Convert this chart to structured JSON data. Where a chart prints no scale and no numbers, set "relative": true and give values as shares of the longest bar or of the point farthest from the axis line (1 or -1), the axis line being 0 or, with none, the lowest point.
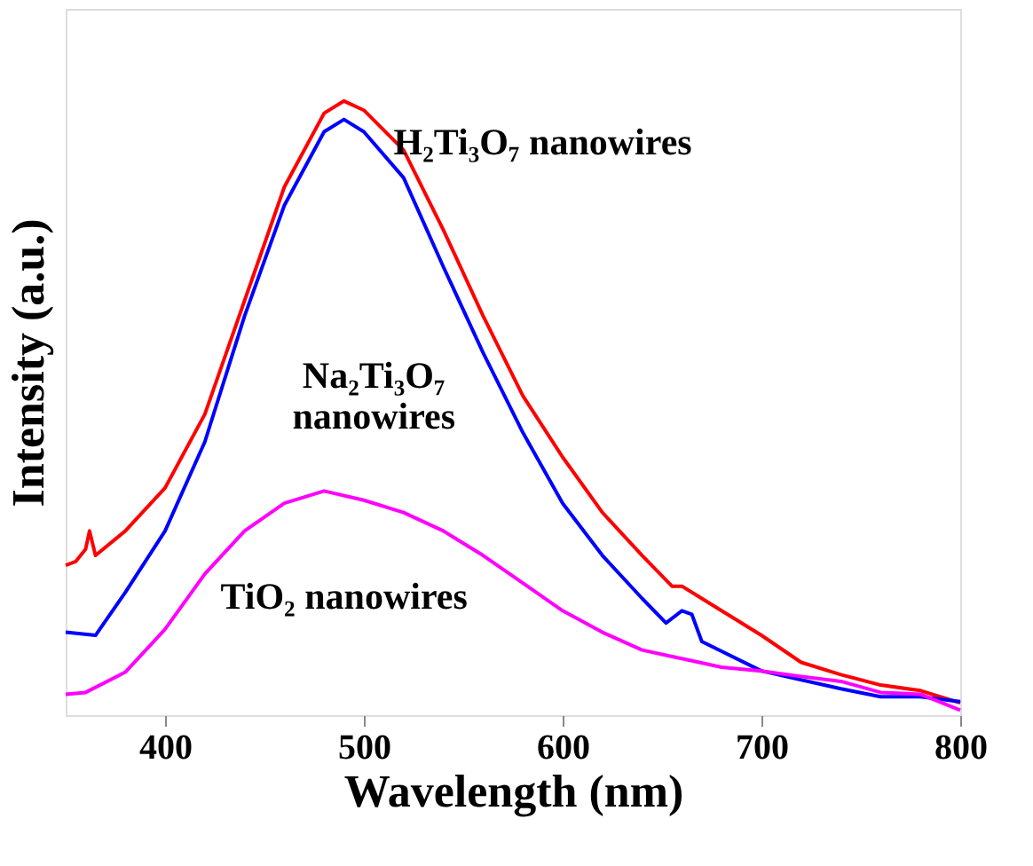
{
  "chart_data": {
    "type": "line",
    "relative": true,
    "xlabel": "Wavelength (nm)",
    "ylabel": "Intensity (a.u.)",
    "xlim": [
      350,
      800
    ],
    "xticks": [
      400,
      500,
      600,
      700,
      800
    ],
    "grid": false,
    "legend": false,
    "marker": "none",
    "line_style": "solid",
    "series": [
      {
        "name": "H₂Ti₃O₇ nanowires",
        "color": "#ff0000",
        "x": [
          350,
          355,
          360,
          362,
          365,
          380,
          400,
          420,
          440,
          460,
          480,
          490,
          500,
          520,
          540,
          560,
          580,
          600,
          620,
          640,
          655,
          660,
          670,
          700,
          720,
          740,
          760,
          780,
          800
        ],
        "values": [
          0.244,
          0.25,
          0.27,
          0.3,
          0.26,
          0.3,
          0.37,
          0.49,
          0.675,
          0.86,
          0.98,
          1.0,
          0.985,
          0.92,
          0.79,
          0.65,
          0.52,
          0.42,
          0.33,
          0.26,
          0.21,
          0.21,
          0.19,
          0.13,
          0.086,
          0.066,
          0.049,
          0.04,
          0.02
        ]
      },
      {
        "name": "Na₂Ti₃O₇ nanowires",
        "color": "#0000ff",
        "x": [
          350,
          365,
          380,
          400,
          420,
          440,
          460,
          480,
          490,
          500,
          520,
          540,
          560,
          580,
          600,
          620,
          640,
          652,
          660,
          665,
          670,
          700,
          740,
          760,
          780,
          800
        ],
        "values": [
          0.135,
          0.13,
          0.2,
          0.3,
          0.445,
          0.65,
          0.83,
          0.95,
          0.97,
          0.95,
          0.875,
          0.73,
          0.59,
          0.46,
          0.345,
          0.26,
          0.19,
          0.15,
          0.17,
          0.164,
          0.12,
          0.072,
          0.043,
          0.03,
          0.03,
          0.022
        ]
      },
      {
        "name": "TiO₂ nanowires",
        "color": "#ff00ff",
        "x": [
          350,
          360,
          380,
          400,
          420,
          440,
          460,
          480,
          500,
          520,
          540,
          560,
          580,
          600,
          620,
          640,
          660,
          680,
          700,
          720,
          740,
          760,
          780,
          800
        ],
        "values": [
          0.034,
          0.037,
          0.07,
          0.14,
          0.23,
          0.3,
          0.345,
          0.365,
          0.35,
          0.33,
          0.3,
          0.26,
          0.215,
          0.17,
          0.135,
          0.106,
          0.092,
          0.078,
          0.072,
          0.063,
          0.055,
          0.037,
          0.034,
          0.008
        ]
      }
    ]
  }
}
